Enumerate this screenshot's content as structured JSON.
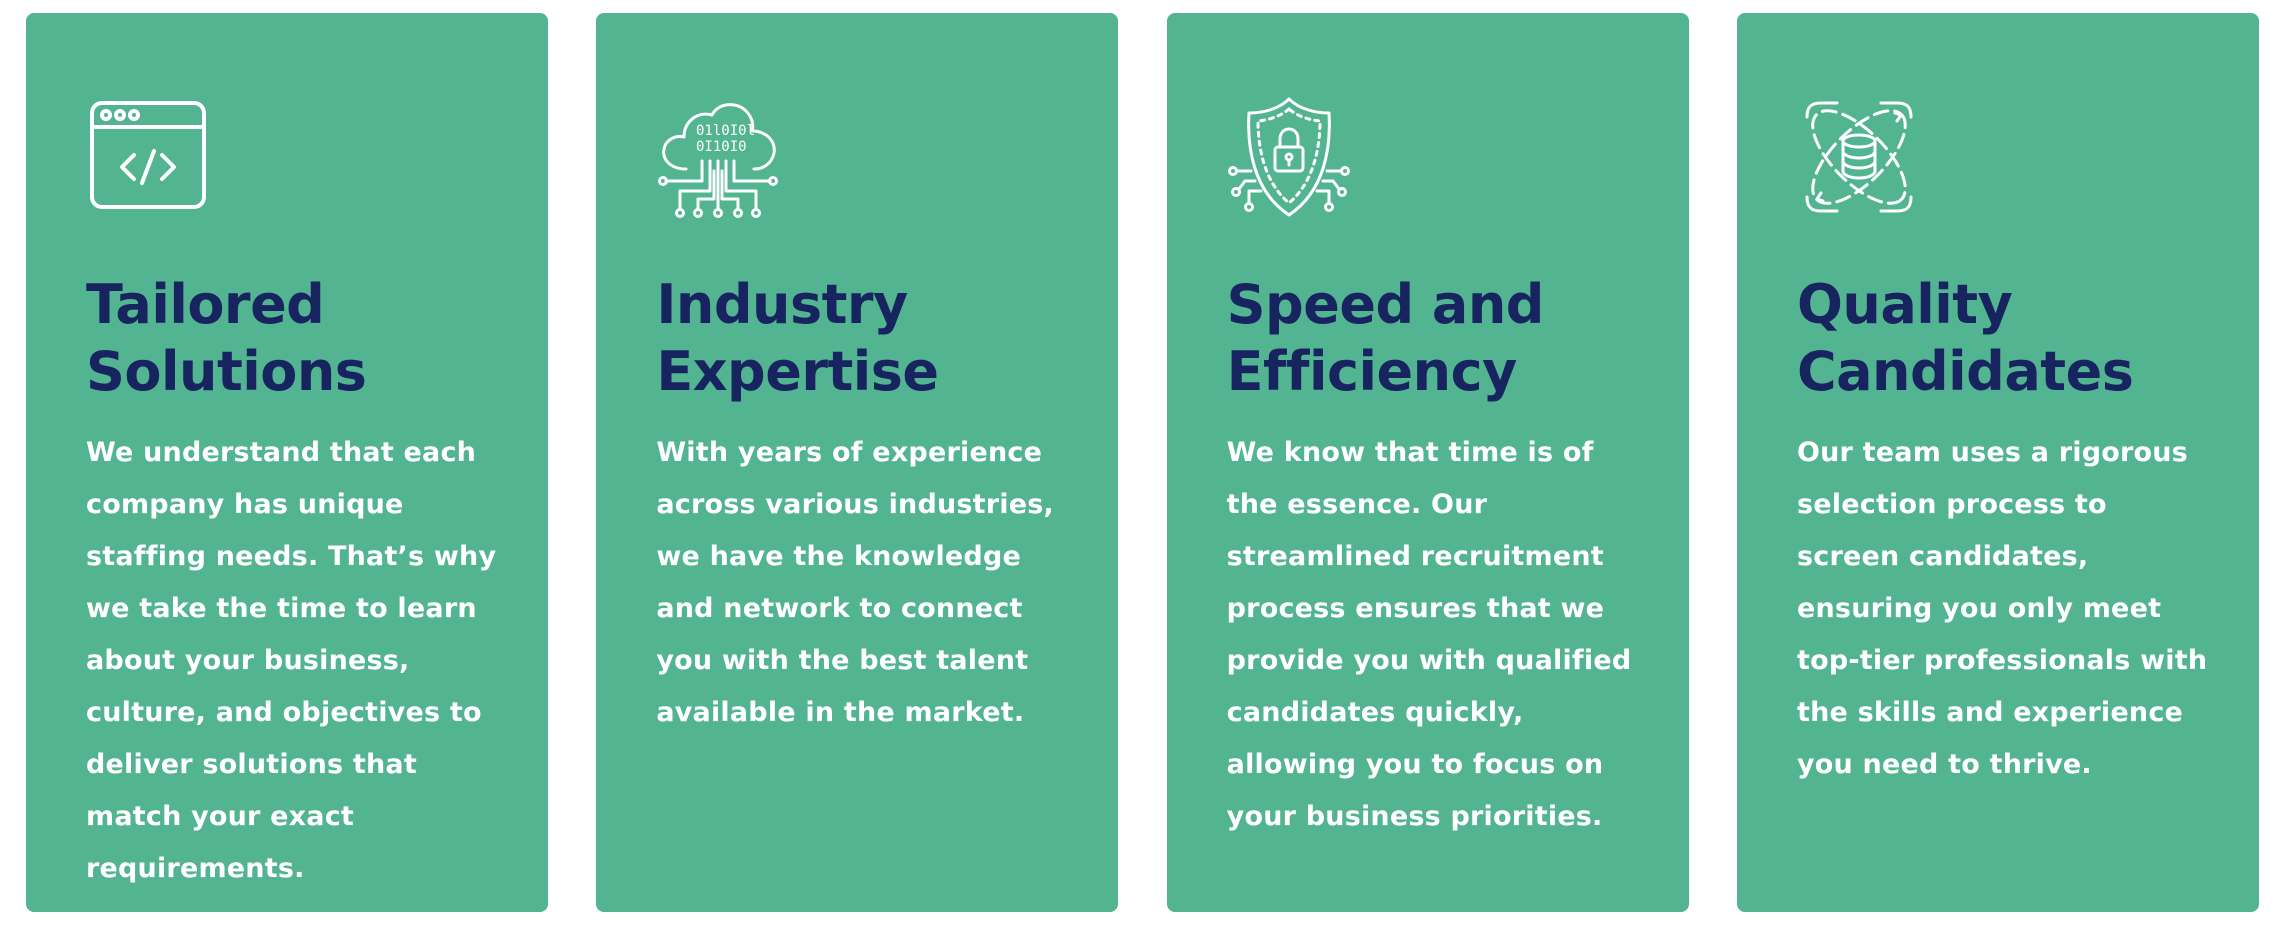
{
  "colors": {
    "card_background": "#52b490",
    "title": "#17245f",
    "body_text": "#ffffff",
    "page_background": "#ffffff"
  },
  "cards": [
    {
      "icon": "browser-code-icon",
      "title": "Tailored\nSolutions",
      "description": "We understand that each company has unique staffing needs. That’s why we take the time to learn about your business, culture, and objectives to deliver solutions that match your exact requirements."
    },
    {
      "icon": "cloud-binary-circuit-icon",
      "title": "Industry\nExpertise",
      "description": "With years of experience across various industries, we have the knowledge and network to connect you with the best talent available in the market."
    },
    {
      "icon": "shield-lock-circuit-icon",
      "title": "Speed and\nEfficiency",
      "description": "We know that time is of the essence. Our streamlined recruitment process ensures that we provide you with qualified candidates quickly, allowing you to focus on your business priorities."
    },
    {
      "icon": "database-orbit-icon",
      "title": "Quality\nCandidates",
      "description": "Our team uses a rigorous selection process to screen candidates, ensuring you only meet top-tier professionals with the skills and experience you need to thrive."
    }
  ]
}
